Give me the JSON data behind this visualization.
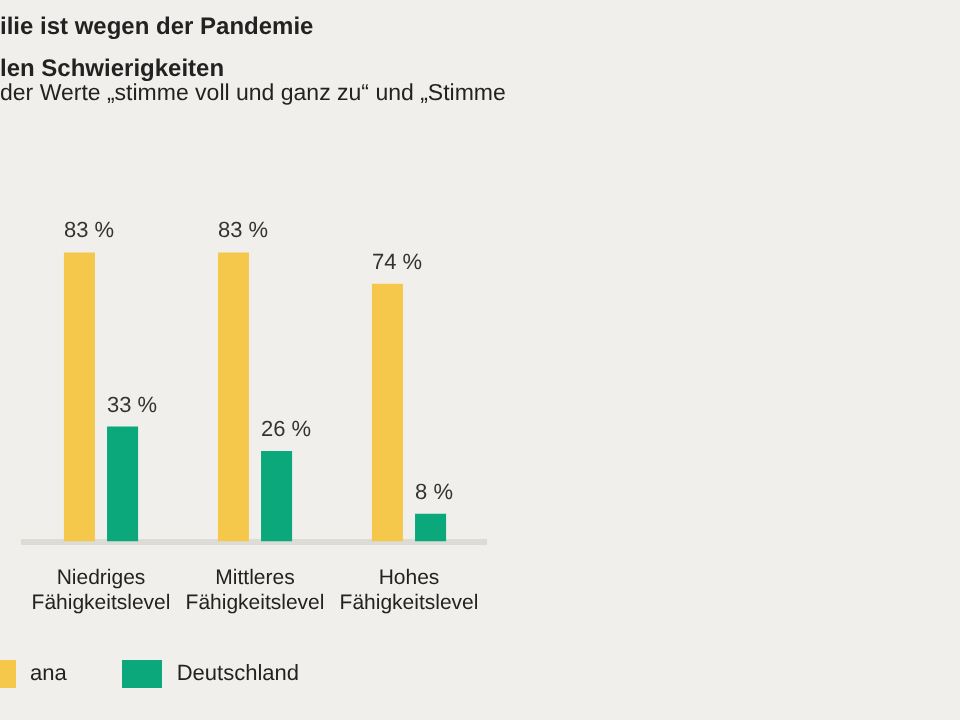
{
  "chart_data": {
    "type": "bar",
    "title": "ilie ist wegen der Pandemie\nlen Schwierigkeiten",
    "subtitle": "der Werte „stimme voll und ganz zu“ und „Stimme",
    "categories": [
      "Niedriges\nFähigkeitslevel",
      "Mittleres\nFähigkeitslevel",
      "Hohes\nFähigkeitslevel"
    ],
    "series": [
      {
        "name": "ana",
        "color": "#f5c84c",
        "values": [
          83,
          83,
          74
        ],
        "value_labels": [
          "83 %",
          "83 %",
          "74 %"
        ]
      },
      {
        "name": "Deutschland",
        "color": "#0aa87a",
        "values": [
          33,
          26,
          8
        ],
        "value_labels": [
          "33 %",
          "26 %",
          "8 %"
        ]
      }
    ],
    "tick_labels": "x",
    "legend": "bottom left"
  }
}
